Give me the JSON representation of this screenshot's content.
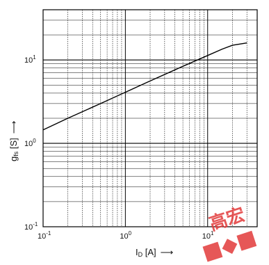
{
  "chart_data": {
    "type": "line",
    "title": "",
    "x_scale": "log",
    "y_scale": "log",
    "xlim": [
      0.1,
      40
    ],
    "ylim": [
      0.1,
      40
    ],
    "grid": true,
    "x_ticks": [
      {
        "value": 0.1,
        "base": "10",
        "exp": "-1"
      },
      {
        "value": 1,
        "base": "10",
        "exp": "0"
      },
      {
        "value": 10,
        "base": "10",
        "exp": "1"
      }
    ],
    "y_ticks": [
      {
        "value": 0.1,
        "base": "10",
        "exp": "-1"
      },
      {
        "value": 1,
        "base": "10",
        "exp": "0"
      },
      {
        "value": 10,
        "base": "10",
        "exp": "1"
      }
    ],
    "xlabel": {
      "main": "I",
      "sub": "D",
      "unit": " [A]",
      "arrow": "⟶"
    },
    "ylabel": {
      "main": "g",
      "sub": "fs",
      "unit": " [S]",
      "arrow": "⟶"
    },
    "series": [
      {
        "color": "#000000",
        "points": [
          {
            "x": 0.1,
            "y": 1.45
          },
          {
            "x": 0.2,
            "y": 2.0
          },
          {
            "x": 0.5,
            "y": 3.0
          },
          {
            "x": 1,
            "y": 4.1
          },
          {
            "x": 2,
            "y": 5.6
          },
          {
            "x": 5,
            "y": 8.4
          },
          {
            "x": 10,
            "y": 11.3
          },
          {
            "x": 15,
            "y": 13.5
          },
          {
            "x": 20,
            "y": 15.0
          },
          {
            "x": 30,
            "y": 16.0
          }
        ]
      }
    ]
  }
}
